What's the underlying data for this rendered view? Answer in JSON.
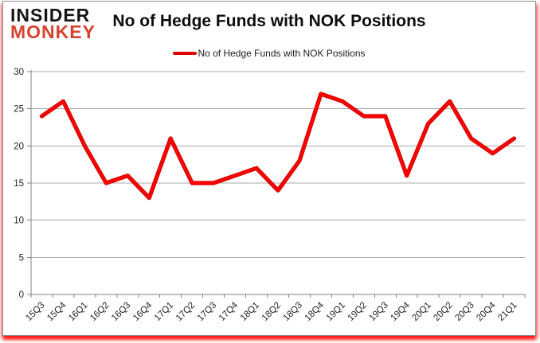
{
  "logo": {
    "line1": "INSIDER",
    "line2": "MONKEY"
  },
  "header": {
    "title": "No of Hedge Funds with NOK Positions"
  },
  "legend": {
    "label": "No of Hedge Funds with NOK Positions",
    "swatch_color": "#DD0000"
  },
  "colors": {
    "series_line": "#FF0000",
    "series_line_edge": "#C80000",
    "gridline": "#A8A8A8",
    "axis": "#808080",
    "tick_label": "#1F1F1F",
    "logo_black": "#161616",
    "logo_red": "#D5422F"
  },
  "chart_data": {
    "type": "line",
    "title": "No of Hedge Funds with NOK Positions",
    "categories": [
      "15Q3",
      "15Q4",
      "16Q1",
      "16Q2",
      "16Q3",
      "16Q4",
      "17Q1",
      "17Q2",
      "17Q3",
      "17Q4",
      "18Q1",
      "18Q2",
      "18Q3",
      "18Q4",
      "19Q1",
      "19Q2",
      "19Q3",
      "19Q4",
      "20Q1",
      "20Q2",
      "20Q3",
      "20Q4",
      "21Q1"
    ],
    "series": [
      {
        "name": "No of Hedge Funds with NOK Positions",
        "color": "#FF0000",
        "values": [
          24,
          26,
          20,
          15,
          16,
          13,
          21,
          15,
          15,
          16,
          17,
          14,
          18,
          27,
          26,
          24,
          24,
          16,
          23,
          26,
          21,
          19,
          21
        ]
      }
    ],
    "xlabel": "",
    "ylabel": "",
    "ylim": [
      0,
      30
    ],
    "yticks": [
      0,
      5,
      10,
      15,
      20,
      25,
      30
    ],
    "grid": true,
    "legend_position": "top"
  }
}
